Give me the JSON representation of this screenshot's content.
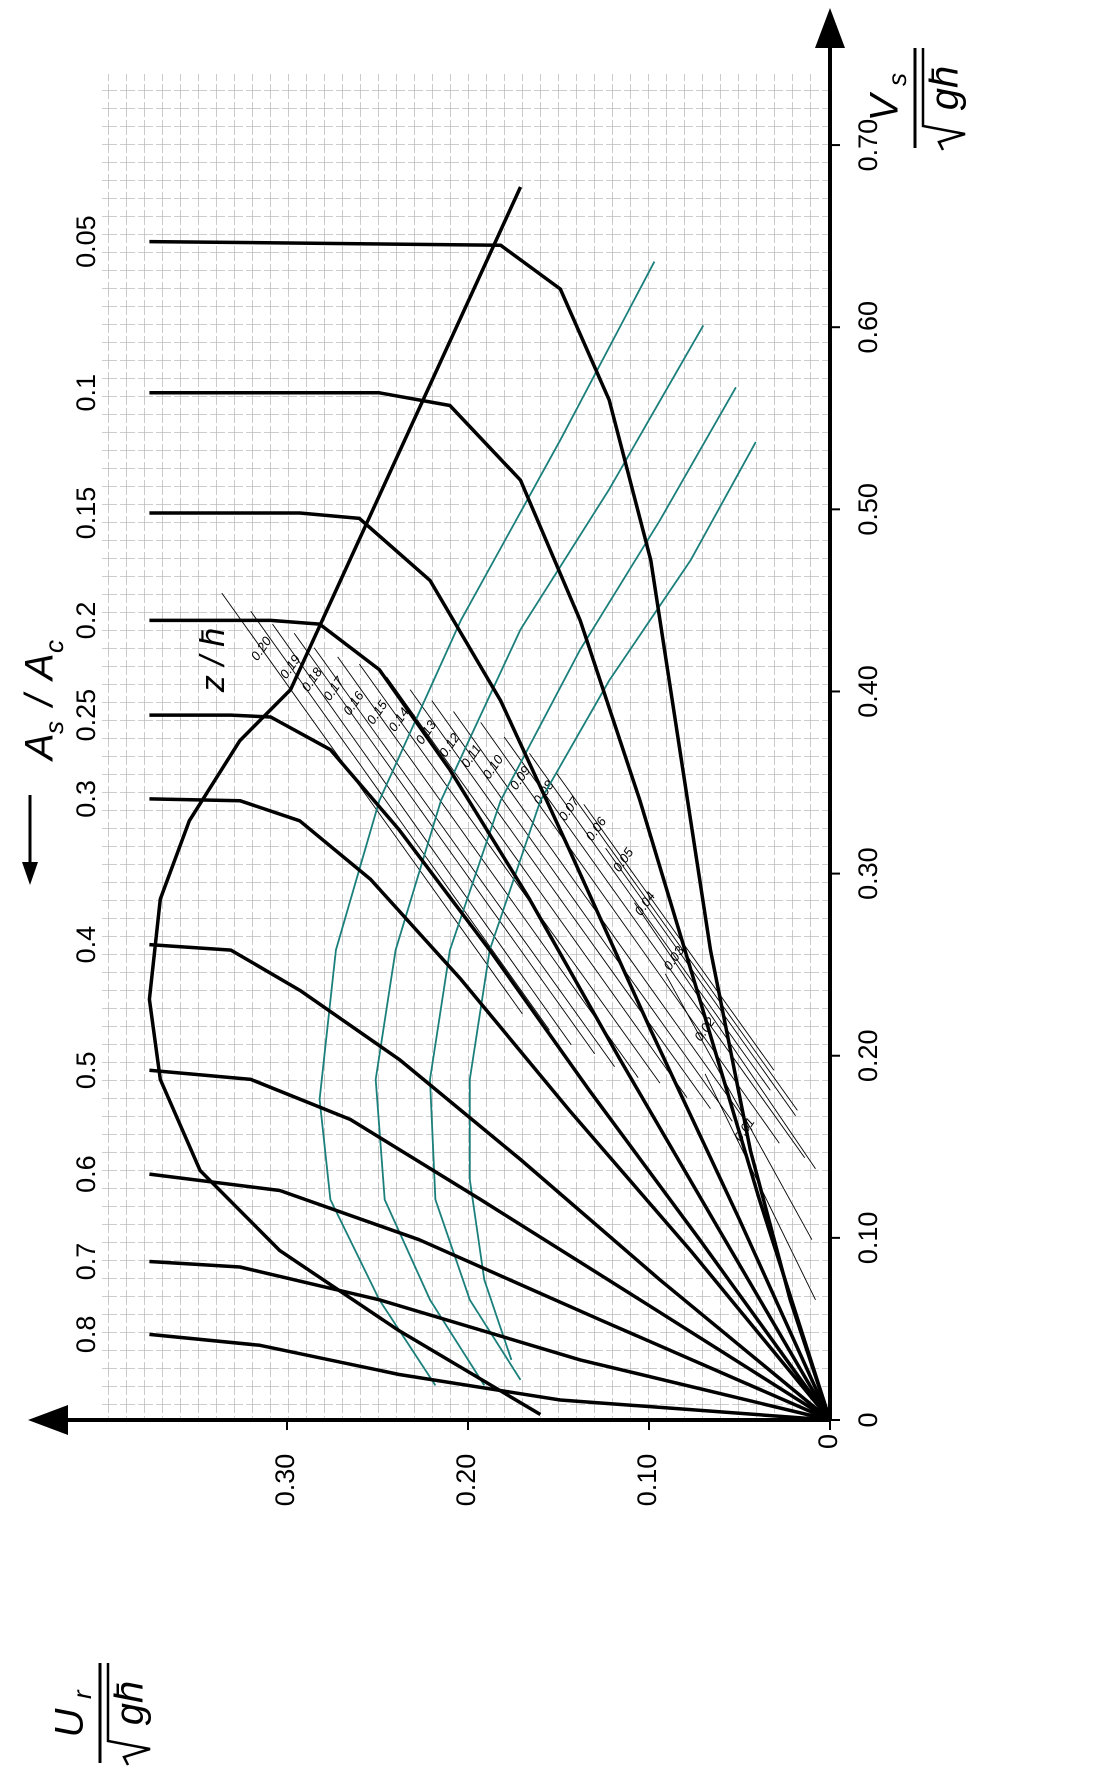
{
  "chart_data": {
    "type": "line",
    "x_label": {
      "main": "V",
      "sub": "s",
      "root": "gh̄"
    },
    "y_label": {
      "main": "U",
      "sub": "r",
      "root": "gh̄"
    },
    "series_title": {
      "main": "A",
      "sub": "s",
      "slash": "/",
      "main2": "A",
      "sub2": "c"
    },
    "z_title": "z / h̄",
    "xlim": [
      0,
      0.75
    ],
    "xticks": [
      0,
      {
        "value": 0.1,
        "label": "0.10"
      },
      {
        "value": 0.2,
        "label": "0.20"
      },
      {
        "value": 0.3,
        "label": "0.30"
      },
      {
        "value": 0.4,
        "label": "0.40"
      },
      {
        "value": 0.5,
        "label": "0.50"
      },
      {
        "value": 0.6,
        "label": "0.60"
      },
      {
        "value": 0.7,
        "label": "0.70"
      }
    ],
    "ylim": [
      0,
      0.4
    ],
    "yticks": [
      0,
      {
        "value": 0.1,
        "label": "0.10"
      },
      {
        "value": 0.2,
        "label": "0.20"
      },
      {
        "value": 0.3,
        "label": "0.30"
      }
    ],
    "grid": true,
    "color": "#000000",
    "series": [
      {
        "name": "0.05",
        "x": [
          0,
          0.066,
          0.148,
          0.258,
          0.368,
          0.472,
          0.56,
          0.621,
          0.645,
          0.647
        ],
        "values": [
          0,
          0.022,
          0.044,
          0.066,
          0.083,
          0.099,
          0.122,
          0.149,
          0.182,
          0.376
        ]
      },
      {
        "name": "0.1",
        "x": [
          0,
          0.121,
          0.231,
          0.34,
          0.439,
          0.516,
          0.557,
          0.564,
          0.564
        ],
        "values": [
          0,
          0.039,
          0.072,
          0.105,
          0.138,
          0.171,
          0.21,
          0.249,
          0.376
        ]
      },
      {
        "name": "0.15",
        "x": [
          0,
          0.11,
          0.214,
          0.313,
          0.395,
          0.461,
          0.495,
          0.498,
          0.498
        ],
        "values": [
          0,
          0.05,
          0.099,
          0.144,
          0.182,
          0.221,
          0.26,
          0.293,
          0.376
        ]
      },
      {
        "name": "0.2",
        "x": [
          0,
          0.104,
          0.198,
          0.286,
          0.357,
          0.412,
          0.437,
          0.439,
          0.439
        ],
        "values": [
          0,
          0.061,
          0.116,
          0.166,
          0.21,
          0.249,
          0.282,
          0.309,
          0.376
        ]
      },
      {
        "name": "0.25",
        "x": [
          0,
          0.099,
          0.181,
          0.258,
          0.324,
          0.368,
          0.386,
          0.387,
          0.387
        ],
        "values": [
          0,
          0.072,
          0.133,
          0.188,
          0.238,
          0.276,
          0.309,
          0.331,
          0.376
        ]
      },
      {
        "name": "0.3",
        "x": [
          0,
          0.093,
          0.17,
          0.242,
          0.297,
          0.329,
          0.34,
          0.341
        ],
        "values": [
          0,
          0.077,
          0.144,
          0.204,
          0.254,
          0.293,
          0.326,
          0.376
        ]
      },
      {
        "name": "0.4",
        "x": [
          0,
          0.077,
          0.143,
          0.198,
          0.236,
          0.258,
          0.261
        ],
        "values": [
          0,
          0.094,
          0.171,
          0.238,
          0.293,
          0.331,
          0.376
        ]
      },
      {
        "name": "0.5",
        "x": [
          0,
          0.066,
          0.121,
          0.165,
          0.187,
          0.192
        ],
        "values": [
          0,
          0.105,
          0.193,
          0.265,
          0.32,
          0.376
        ]
      },
      {
        "name": "0.6",
        "x": [
          0,
          0.055,
          0.099,
          0.126,
          0.135
        ],
        "values": [
          0,
          0.127,
          0.227,
          0.304,
          0.376
        ]
      },
      {
        "name": "0.7",
        "x": [
          0,
          0.033,
          0.066,
          0.084,
          0.087
        ],
        "values": [
          0,
          0.138,
          0.249,
          0.326,
          0.376
        ]
      },
      {
        "name": "0.8",
        "x": [
          0,
          0.011,
          0.025,
          0.041,
          0.047
        ],
        "values": [
          0,
          0.149,
          0.238,
          0.315,
          0.376
        ]
      }
    ],
    "envelope": {
      "color": "#000000",
      "x": [
        0.003,
        0.049,
        0.093,
        0.137,
        0.187,
        0.231,
        0.286,
        0.329,
        0.373,
        0.401,
        0.677
      ],
      "values": [
        0.16,
        0.238,
        0.304,
        0.348,
        0.37,
        0.376,
        0.37,
        0.354,
        0.326,
        0.298,
        0.171
      ]
    },
    "z_series": [
      {
        "name": "0.20",
        "x": [
          0.454,
          0.223
        ],
        "values": [
          0.336,
          0.17
        ]
      },
      {
        "name": "0.19",
        "x": [
          0.444,
          0.214
        ],
        "values": [
          0.32,
          0.155
        ]
      },
      {
        "name": "0.18",
        "x": [
          0.437,
          0.206
        ],
        "values": [
          0.308,
          0.143
        ]
      },
      {
        "name": "0.17",
        "x": [
          0.432,
          0.201
        ],
        "values": [
          0.296,
          0.13
        ]
      },
      {
        "name": "0.16",
        "x": [
          0.424,
          0.194
        ],
        "values": [
          0.285,
          0.119
        ]
      },
      {
        "name": "0.15",
        "x": [
          0.419,
          0.188
        ],
        "values": [
          0.272,
          0.106
        ]
      },
      {
        "name": "0.14",
        "x": [
          0.415,
          0.185
        ],
        "values": [
          0.26,
          0.094
        ]
      },
      {
        "name": "0.13",
        "x": [
          0.408,
          0.177
        ],
        "values": [
          0.245,
          0.079
        ]
      },
      {
        "name": "0.12",
        "x": [
          0.401,
          0.171
        ],
        "values": [
          0.232,
          0.066
        ]
      },
      {
        "name": "0.11",
        "x": [
          0.395,
          0.164
        ],
        "values": [
          0.22,
          0.054
        ]
      },
      {
        "name": "0.10",
        "x": [
          0.389,
          0.159
        ],
        "values": [
          0.208,
          0.043
        ]
      },
      {
        "name": "0.09",
        "x": [
          0.383,
          0.152
        ],
        "values": [
          0.193,
          0.028
        ]
      },
      {
        "name": "0.08",
        "x": [
          0.375,
          0.144
        ],
        "values": [
          0.18,
          0.014
        ]
      },
      {
        "name": "0.07",
        "x": [
          0.366,
          0.181
        ],
        "values": [
          0.166,
          0.033
        ]
      },
      {
        "name": "0.06",
        "x": [
          0.355,
          0.17
        ],
        "values": [
          0.151,
          0.018
        ]
      },
      {
        "name": "0.05",
        "x": [
          0.338,
          0.192
        ],
        "values": [
          0.136,
          0.031
        ]
      },
      {
        "name": "0.04",
        "x": [
          0.314,
          0.167
        ],
        "values": [
          0.124,
          0.019
        ]
      },
      {
        "name": "0.03",
        "x": [
          0.284,
          0.138
        ],
        "values": [
          0.108,
          0.008
        ]
      },
      {
        "name": "0.02",
        "x": [
          0.245,
          0.099
        ],
        "values": [
          0.091,
          0.01
        ]
      },
      {
        "name": "0.01",
        "x": [
          0.19,
          0.066
        ],
        "values": [
          0.069,
          0.008
        ]
      }
    ],
    "teal_color": "#1b7f7b",
    "teal_series": [
      {
        "x": [
          0.019,
          0.066,
          0.121,
          0.176,
          0.258,
          0.34,
          0.439,
          0.538,
          0.636
        ],
        "values": [
          0.218,
          0.249,
          0.276,
          0.282,
          0.273,
          0.249,
          0.204,
          0.149,
          0.097
        ]
      },
      {
        "x": [
          0.019,
          0.066,
          0.121,
          0.187,
          0.258,
          0.34,
          0.434,
          0.511,
          0.601
        ],
        "values": [
          0.191,
          0.221,
          0.246,
          0.251,
          0.24,
          0.215,
          0.171,
          0.122,
          0.07
        ]
      },
      {
        "x": [
          0.022,
          0.066,
          0.121,
          0.187,
          0.258,
          0.34,
          0.423,
          0.494,
          0.567
        ],
        "values": [
          0.171,
          0.199,
          0.218,
          0.221,
          0.21,
          0.182,
          0.138,
          0.094,
          0.052
        ]
      },
      {
        "x": [
          0.033,
          0.077,
          0.132,
          0.187,
          0.258,
          0.34,
          0.406,
          0.472,
          0.537
        ],
        "values": [
          0.176,
          0.191,
          0.199,
          0.199,
          0.188,
          0.16,
          0.122,
          0.077,
          0.041
        ]
      }
    ]
  }
}
